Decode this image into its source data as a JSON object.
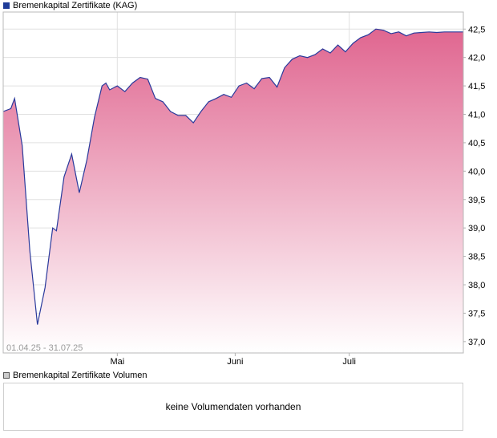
{
  "legend_price": "Bremenkapital Zertifikate (KAG)",
  "legend_volume": "Bremenkapital Zertifikate Volumen",
  "date_range": "01.04.25 - 31.07.25",
  "volume_message": "keine Volumendaten vorhanden",
  "colors": {
    "line": "#2a3a9c",
    "fill_top": "#e06690",
    "fill_bottom": "#ffffff",
    "grid": "#e0e0e0",
    "axis": "#b0b0b0"
  },
  "chart_data": {
    "type": "area",
    "ylim": [
      36.8,
      42.8
    ],
    "xlim": [
      0,
      121
    ],
    "grid": true,
    "y_ticks": [
      37.0,
      37.5,
      38.0,
      38.5,
      39.0,
      39.5,
      40.0,
      40.5,
      41.0,
      41.5,
      42.0,
      42.5
    ],
    "y_tick_labels": [
      "37,0",
      "37,5",
      "38,0",
      "38,5",
      "39,0",
      "39,5",
      "40,0",
      "40,5",
      "41,0",
      "41,5",
      "42,0",
      "42,5"
    ],
    "x_ticks": [
      {
        "day": 30,
        "label": "Mai"
      },
      {
        "day": 61,
        "label": "Juni"
      },
      {
        "day": 91,
        "label": "Juli"
      }
    ],
    "series": [
      {
        "x": [
          0,
          2,
          3,
          5,
          7,
          9,
          11,
          13,
          14,
          16,
          18,
          20,
          22,
          24,
          26,
          27,
          28,
          30,
          32,
          34,
          36,
          38,
          40,
          42,
          44,
          46,
          48,
          50,
          52,
          54,
          56,
          58,
          60,
          62,
          64,
          66,
          68,
          70,
          72,
          74,
          76,
          78,
          80,
          82,
          84,
          86,
          88,
          90,
          92,
          94,
          96,
          98,
          100,
          102,
          104,
          106,
          108,
          110,
          112,
          114,
          116,
          118,
          120,
          121
        ],
        "y": [
          41.05,
          41.1,
          41.28,
          40.45,
          38.6,
          37.3,
          37.95,
          39.0,
          38.95,
          39.9,
          40.3,
          39.62,
          40.2,
          40.95,
          41.5,
          41.55,
          41.43,
          41.5,
          41.4,
          41.55,
          41.65,
          41.62,
          41.28,
          41.22,
          41.05,
          40.98,
          40.98,
          40.85,
          41.05,
          41.22,
          41.28,
          41.35,
          41.3,
          41.5,
          41.55,
          41.45,
          41.63,
          41.65,
          41.48,
          41.82,
          41.97,
          42.03,
          42.0,
          42.05,
          42.15,
          42.08,
          42.22,
          42.1,
          42.25,
          42.35,
          42.4,
          42.5,
          42.48,
          42.42,
          42.45,
          42.38,
          42.43,
          42.44,
          42.45,
          42.44,
          42.45,
          42.45,
          42.45,
          42.45
        ]
      }
    ]
  }
}
